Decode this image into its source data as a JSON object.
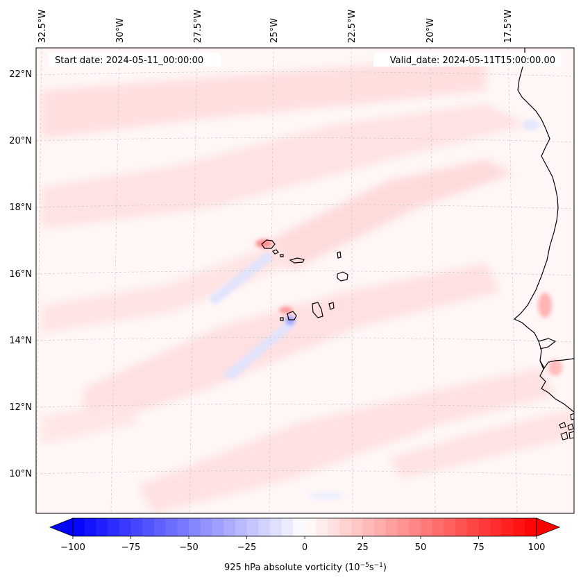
{
  "map": {
    "header": {
      "start_label": "Start date: 2024-05-11_00:00:00",
      "valid_label": "Valid_date: 2024-05-11T15:00:00.00"
    },
    "lon_labels": [
      "32.5°W",
      "30°W",
      "27.5°W",
      "25°W",
      "22.5°W",
      "20°W",
      "17.5°W"
    ],
    "lat_labels": [
      "22°N",
      "20°N",
      "18°N",
      "16°N",
      "14°N",
      "12°N",
      "10°N"
    ],
    "colorbar": {
      "ticks": [
        "−100",
        "−75",
        "−50",
        "−25",
        "0",
        "25",
        "50",
        "75",
        "100"
      ],
      "label": "925 hPa absolute vorticity (10",
      "label_exp1": "−5",
      "label_mid": "s",
      "label_exp2": "−1",
      "label_end": ")",
      "range": [
        -100,
        100
      ],
      "colors": {
        "neg": "#0000ff",
        "zero": "#ffffff",
        "pos": "#ff0000"
      }
    },
    "colors": {
      "coast": "#000000",
      "grid": "#c8c8c8",
      "background": "#fff6f6"
    }
  }
}
